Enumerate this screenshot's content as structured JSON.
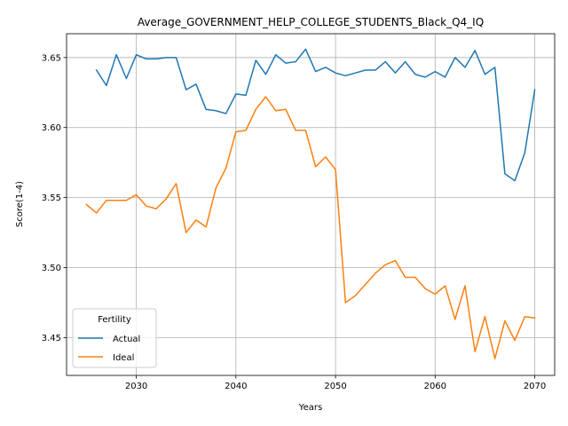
{
  "chart_data": {
    "type": "line",
    "title": "Average_GOVERNMENT_HELP_COLLEGE_STUDENTS_Black_Q4_IQ",
    "xlabel": "Years",
    "ylabel": "Score(1-4)",
    "xlim": [
      2023,
      2072
    ],
    "ylim": [
      3.423,
      3.667
    ],
    "xticks": [
      2030,
      2040,
      2050,
      2060,
      2070
    ],
    "yticks": [
      3.45,
      3.5,
      3.55,
      3.6,
      3.65
    ],
    "ytick_labels": [
      "3.45",
      "3.50",
      "3.55",
      "3.60",
      "3.65"
    ],
    "grid": true,
    "legend": {
      "title": "Fertility",
      "position": "lower-left"
    },
    "series": [
      {
        "name": "Actual",
        "color": "#1f77b4",
        "x": [
          2026,
          2027,
          2028,
          2029,
          2030,
          2031,
          2032,
          2033,
          2034,
          2035,
          2036,
          2037,
          2038,
          2039,
          2040,
          2041,
          2042,
          2043,
          2044,
          2045,
          2046,
          2047,
          2048,
          2049,
          2050,
          2051,
          2052,
          2053,
          2054,
          2055,
          2056,
          2057,
          2058,
          2059,
          2060,
          2061,
          2062,
          2063,
          2064,
          2065,
          2066,
          2067,
          2068,
          2069,
          2070
        ],
        "values": [
          3.641,
          3.63,
          3.652,
          3.635,
          3.652,
          3.649,
          3.649,
          3.65,
          3.65,
          3.627,
          3.631,
          3.613,
          3.612,
          3.61,
          3.624,
          3.623,
          3.648,
          3.638,
          3.652,
          3.646,
          3.647,
          3.656,
          3.64,
          3.643,
          3.639,
          3.637,
          3.639,
          3.641,
          3.641,
          3.647,
          3.639,
          3.647,
          3.638,
          3.636,
          3.64,
          3.636,
          3.65,
          3.643,
          3.655,
          3.638,
          3.643,
          3.567,
          3.562,
          3.582,
          3.627
        ]
      },
      {
        "name": "Ideal",
        "color": "#ff7f0e",
        "x": [
          2025,
          2026,
          2027,
          2028,
          2029,
          2030,
          2031,
          2032,
          2033,
          2034,
          2035,
          2036,
          2037,
          2038,
          2039,
          2040,
          2041,
          2042,
          2043,
          2044,
          2045,
          2046,
          2047,
          2048,
          2049,
          2050,
          2051,
          2052,
          2053,
          2054,
          2055,
          2056,
          2057,
          2058,
          2059,
          2060,
          2061,
          2062,
          2063,
          2064,
          2065,
          2066,
          2067,
          2068,
          2069,
          2070
        ],
        "values": [
          3.545,
          3.539,
          3.548,
          3.548,
          3.548,
          3.552,
          3.544,
          3.542,
          3.549,
          3.56,
          3.525,
          3.534,
          3.529,
          3.557,
          3.571,
          3.597,
          3.598,
          3.613,
          3.622,
          3.612,
          3.613,
          3.598,
          3.598,
          3.572,
          3.579,
          3.57,
          3.475,
          3.48,
          3.488,
          3.496,
          3.502,
          3.505,
          3.493,
          3.493,
          3.485,
          3.481,
          3.487,
          3.463,
          3.487,
          3.44,
          3.465,
          3.435,
          3.462,
          3.448,
          3.465,
          3.464
        ]
      }
    ]
  }
}
